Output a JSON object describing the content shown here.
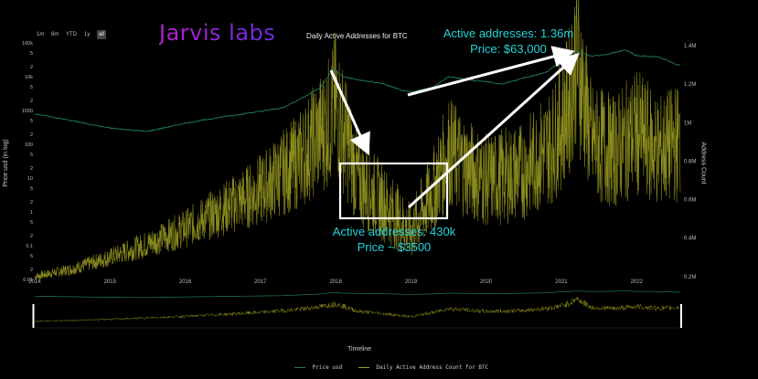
{
  "brand": {
    "text": "Jarvis labs",
    "color_from": "#b51fd0",
    "color_to": "#6a2bd8"
  },
  "range_buttons": [
    {
      "label": "1m",
      "active": false
    },
    {
      "label": "6m",
      "active": false
    },
    {
      "label": "YTD",
      "active": false
    },
    {
      "label": "1y",
      "active": false
    },
    {
      "label": "all",
      "active": true
    }
  ],
  "chart_data": {
    "type": "line",
    "title": "Daily Active Addresses for BTC",
    "xlabel": "Timeline",
    "y_left_label": "Price usd (in log)",
    "y_right_label": "Address Count",
    "x_ticks": [
      "2014",
      "2015",
      "2016",
      "2017",
      "2018",
      "2019",
      "2020",
      "2021",
      "2022"
    ],
    "y_left_ticks": [
      "100k",
      "5",
      "2",
      "10k",
      "5",
      "2",
      "1000",
      "5",
      "2",
      "100",
      "5",
      "2",
      "10",
      "5",
      "2",
      "1",
      "5",
      "2",
      "0.1",
      "5",
      "2",
      "0.01"
    ],
    "y_right_ticks": [
      "1.4M",
      "1.2M",
      "1M",
      "0.8M",
      "0.6M",
      "0.4M",
      "0.2M"
    ],
    "y_left_scale": "log",
    "y_left_range": [
      0.01,
      100000
    ],
    "y_right_range": [
      0,
      1400000
    ],
    "grid": false,
    "legend_position": "bottom-center",
    "series": [
      {
        "name": "Price usd",
        "color": "#1f7a5a",
        "axis": "left",
        "x": [
          2014.0,
          2014.3,
          2014.6,
          2015.0,
          2015.5,
          2016.0,
          2016.5,
          2017.0,
          2017.3,
          2017.6,
          2017.8,
          2017.97,
          2018.1,
          2018.3,
          2018.6,
          2018.9,
          2019.0,
          2019.3,
          2019.5,
          2019.8,
          2020.0,
          2020.2,
          2020.5,
          2020.8,
          2021.0,
          2021.2,
          2021.4,
          2021.6,
          2021.85,
          2022.0,
          2022.3,
          2022.55
        ],
        "values": [
          800,
          600,
          450,
          300,
          240,
          420,
          650,
          950,
          1200,
          2700,
          4800,
          17000,
          10000,
          8000,
          6500,
          3800,
          3500,
          5000,
          10000,
          8000,
          7200,
          6000,
          9200,
          13500,
          30000,
          58000,
          40000,
          45000,
          63000,
          42000,
          38000,
          22000
        ]
      },
      {
        "name": "Daily Active Address Count for BTC",
        "color": "#9a9a20",
        "axis": "right",
        "x": [
          2014.0,
          2014.5,
          2015.0,
          2015.5,
          2016.0,
          2016.5,
          2017.0,
          2017.5,
          2017.9,
          2018.0,
          2018.3,
          2018.6,
          2019.0,
          2019.3,
          2019.5,
          2019.8,
          2020.0,
          2020.5,
          2020.9,
          2021.1,
          2021.2,
          2021.4,
          2021.7,
          2022.0,
          2022.3,
          2022.55
        ],
        "values": [
          200000,
          240000,
          300000,
          370000,
          450000,
          550000,
          650000,
          800000,
          1000000,
          1100000,
          700000,
          600000,
          430000,
          650000,
          850000,
          750000,
          700000,
          750000,
          900000,
          1100000,
          1360000,
          900000,
          850000,
          950000,
          850000,
          900000
        ]
      }
    ],
    "annotations": [
      {
        "lines": [
          "Active addresses: 1.36m",
          "Price: $63,000"
        ]
      },
      {
        "lines": [
          "Active addresses: 430k",
          "Price ~ $3500"
        ]
      }
    ]
  },
  "colors": {
    "annotation": "#27d3d8",
    "arrow": "#ffffff",
    "background": "#000000"
  }
}
